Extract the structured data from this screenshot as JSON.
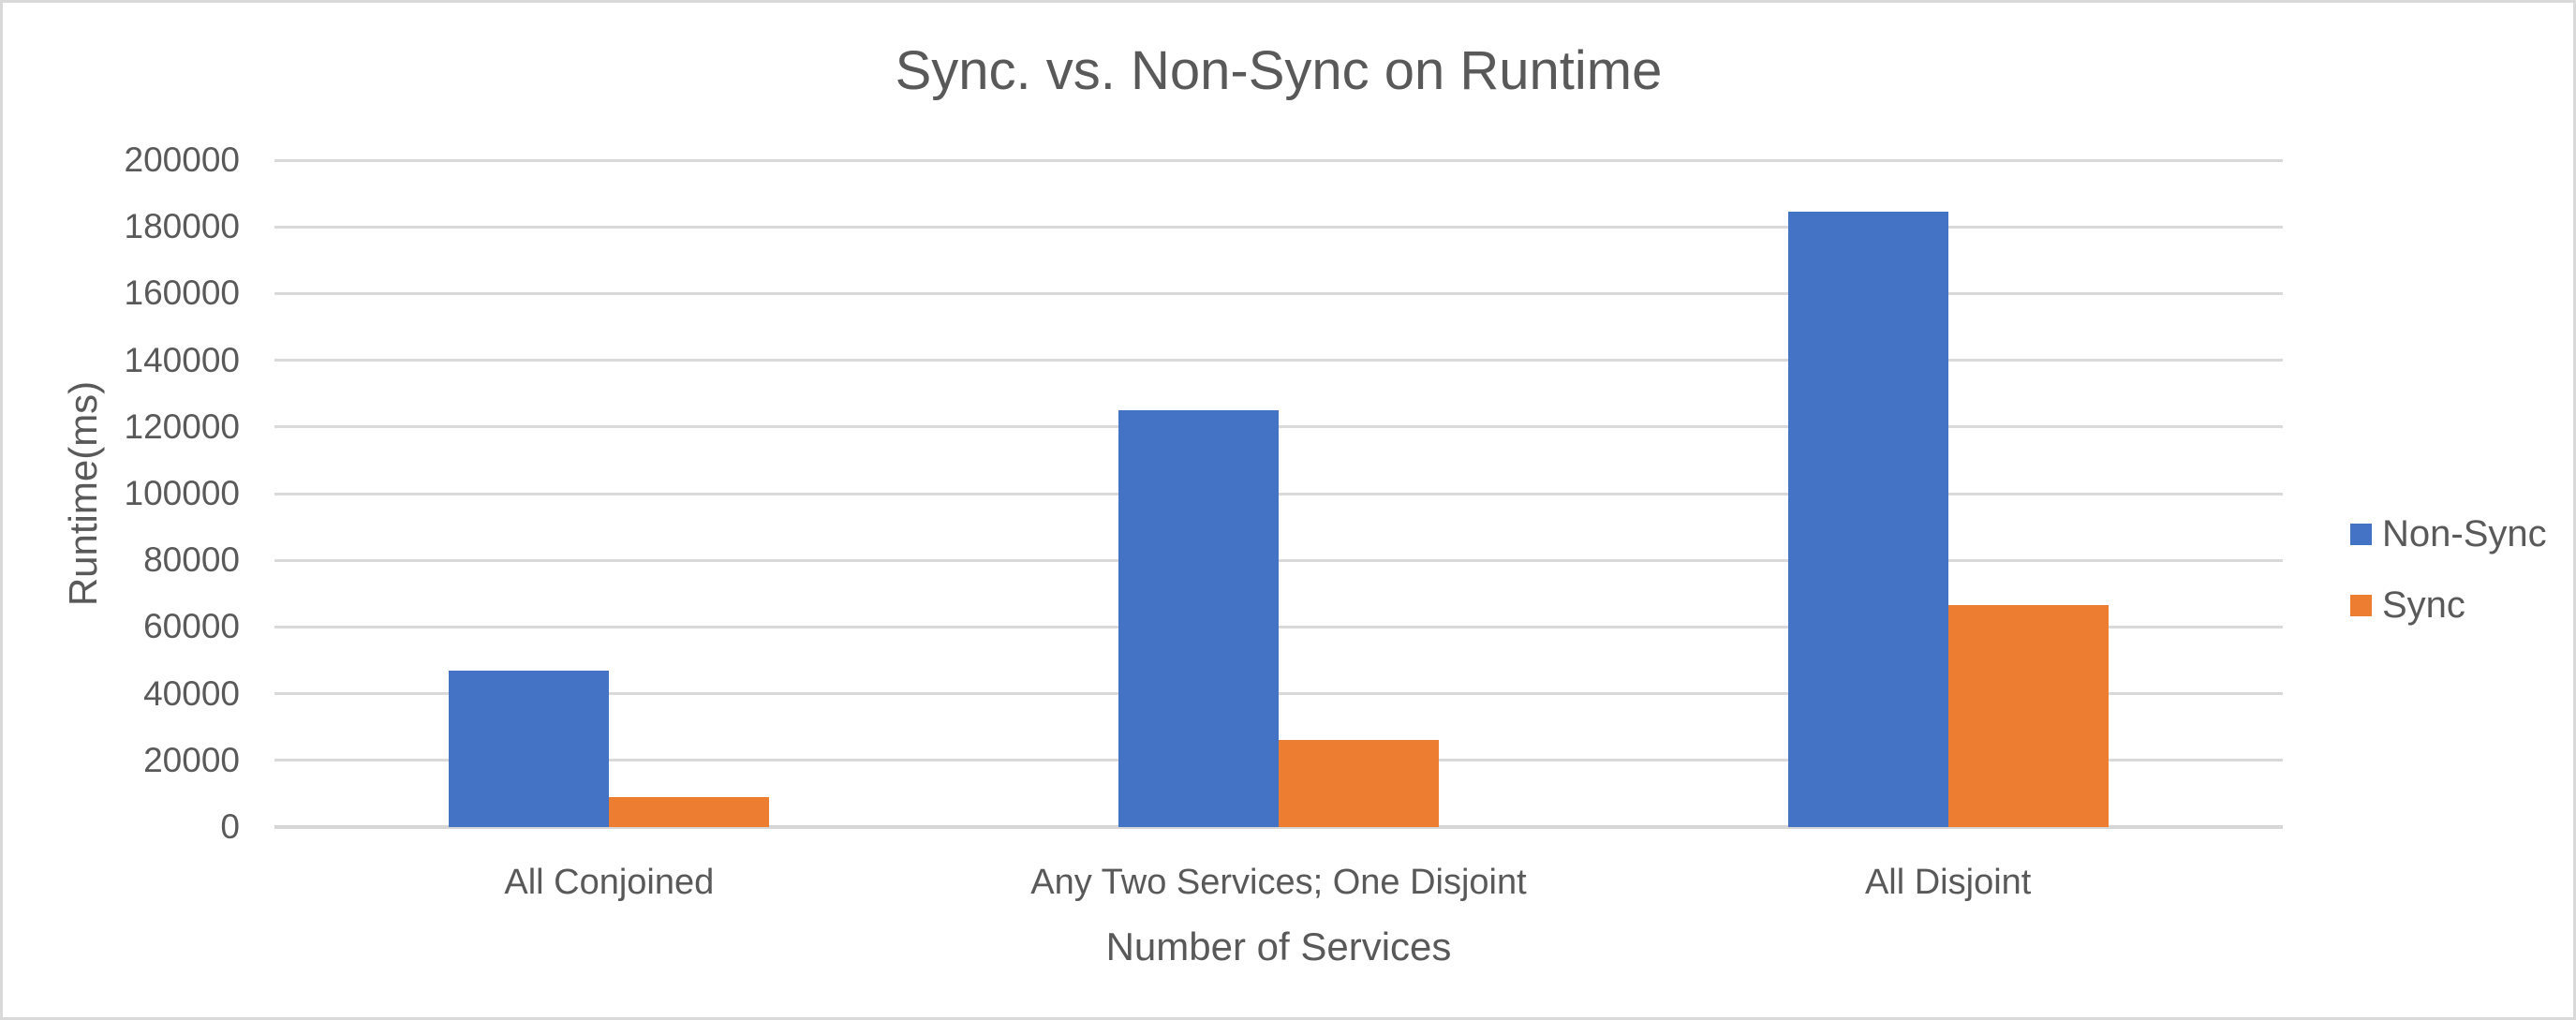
{
  "chart_data": {
    "type": "bar",
    "title": "Sync. vs. Non-Sync on Runtime",
    "xlabel": "Number of Services",
    "ylabel": "Runtime(ms)",
    "categories": [
      "All Conjoined",
      "Any Two Services; One Disjoint",
      "All Disjoint"
    ],
    "series": [
      {
        "name": "Non-Sync",
        "color": "#4472C4",
        "values": [
          47000,
          125000,
          184500
        ]
      },
      {
        "name": "Sync",
        "color": "#ED7D31",
        "values": [
          9000,
          26000,
          66500
        ]
      }
    ],
    "ylim": [
      0,
      200000
    ],
    "ytick_interval": 20000,
    "ytick_labels": [
      "0",
      "20000",
      "40000",
      "60000",
      "80000",
      "100000",
      "120000",
      "140000",
      "160000",
      "180000",
      "200000"
    ],
    "grid": true,
    "legend_position": "right"
  },
  "colors": {
    "text": "#595959",
    "gridline": "#D9D9D9",
    "axis_line": "#D6D6D6",
    "background": "#FFFFFF",
    "border": "#D9D9D9"
  }
}
